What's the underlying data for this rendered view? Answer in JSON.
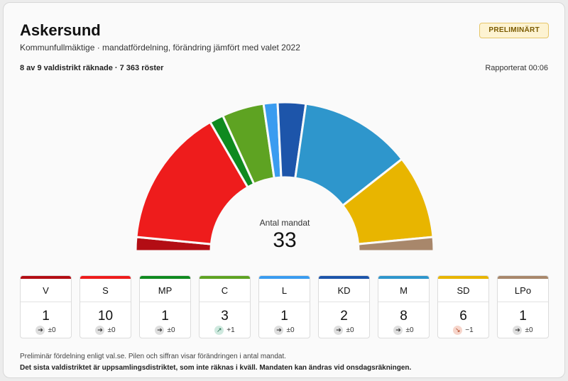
{
  "header": {
    "title": "Askersund",
    "subtitle": "Kommunfullmäktige · mandatfördelning, förändring jämfört med valet 2022",
    "badge": "PRELIMINÄRT",
    "counts": "8 av 9 valdistrikt räknade · 7 363 röster",
    "reported": "Rapporterat 00:06"
  },
  "center": {
    "label": "Antal mandat",
    "value": "33"
  },
  "chart_data": {
    "type": "parliament",
    "total_seats": 33,
    "categories": [
      "V",
      "S",
      "MP",
      "C",
      "L",
      "KD",
      "M",
      "SD",
      "LPo"
    ],
    "values": [
      1,
      10,
      1,
      3,
      1,
      2,
      8,
      6,
      1
    ],
    "changes": [
      0,
      0,
      0,
      1,
      0,
      0,
      0,
      -1,
      0
    ],
    "colors": [
      "#b30d14",
      "#ee1c1c",
      "#0f8a1f",
      "#5ea322",
      "#3a9cf0",
      "#1d55aa",
      "#2e96cc",
      "#e8b500",
      "#a8876b"
    ]
  },
  "parties": [
    {
      "abbr": "V",
      "seats": "1",
      "change_text": "±0",
      "trend": "flat",
      "color": "#b30d14"
    },
    {
      "abbr": "S",
      "seats": "10",
      "change_text": "±0",
      "trend": "flat",
      "color": "#ee1c1c"
    },
    {
      "abbr": "MP",
      "seats": "1",
      "change_text": "±0",
      "trend": "flat",
      "color": "#0f8a1f"
    },
    {
      "abbr": "C",
      "seats": "3",
      "change_text": "+1",
      "trend": "up",
      "color": "#5ea322"
    },
    {
      "abbr": "L",
      "seats": "1",
      "change_text": "±0",
      "trend": "flat",
      "color": "#3a9cf0"
    },
    {
      "abbr": "KD",
      "seats": "2",
      "change_text": "±0",
      "trend": "flat",
      "color": "#1d55aa"
    },
    {
      "abbr": "M",
      "seats": "8",
      "change_text": "±0",
      "trend": "flat",
      "color": "#2e96cc"
    },
    {
      "abbr": "SD",
      "seats": "6",
      "change_text": "−1",
      "trend": "down",
      "color": "#e8b500"
    },
    {
      "abbr": "LPo",
      "seats": "1",
      "change_text": "±0",
      "trend": "flat",
      "color": "#a8876b"
    }
  ],
  "footer": {
    "note": "Preliminär fördelning enligt val.se. Pilen och siffran visar förändringen i antal mandat.",
    "warning": "Det sista valdistriktet är uppsamlingsdistriktet, som inte räknas i kväll. Mandaten kan ändras vid onsdagsräkningen."
  }
}
